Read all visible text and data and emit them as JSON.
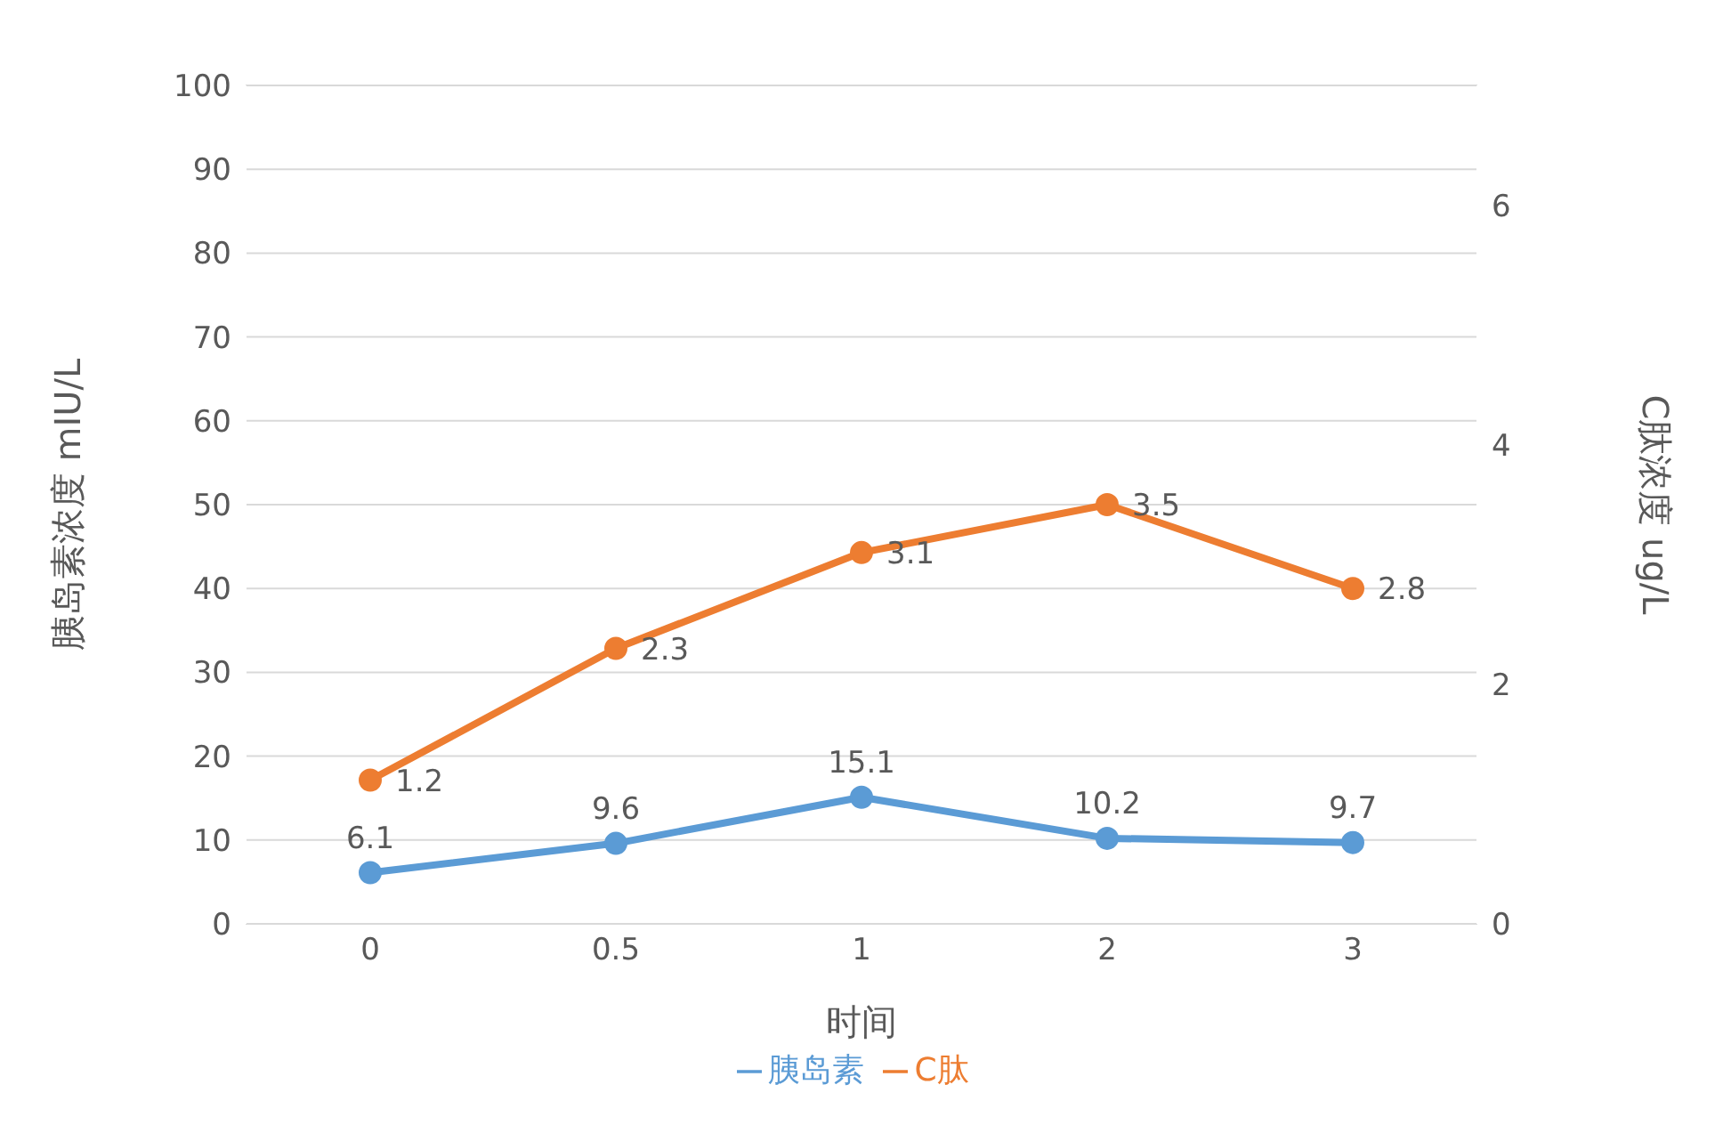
{
  "chart_data": {
    "type": "line",
    "xlabel": "时间",
    "ylabel": "胰岛素浓度   mIU/L",
    "y2label": "C肽浓度   ug/L",
    "categories": [
      "0",
      "0.5",
      "1",
      "2",
      "3"
    ],
    "series": [
      {
        "name": "胰岛素",
        "color": "#5b9bd5",
        "values": [
          6.1,
          9.6,
          15.1,
          10.2,
          9.7
        ],
        "axis": "y"
      },
      {
        "name": "C肽",
        "color": "#ed7d31",
        "values": [
          1.2,
          2.3,
          3.1,
          3.5,
          2.8
        ],
        "axis": "y2"
      }
    ],
    "ylim": [
      0,
      100
    ],
    "yticks": [
      0,
      10,
      20,
      30,
      40,
      50,
      60,
      70,
      80,
      90,
      100
    ],
    "y2lim": [
      0,
      7
    ],
    "y2ticks": [
      0,
      2,
      4,
      6
    ],
    "grid": "y",
    "legend": "bottom",
    "marker": "circle",
    "line_style": "solid",
    "data_labels": true
  }
}
